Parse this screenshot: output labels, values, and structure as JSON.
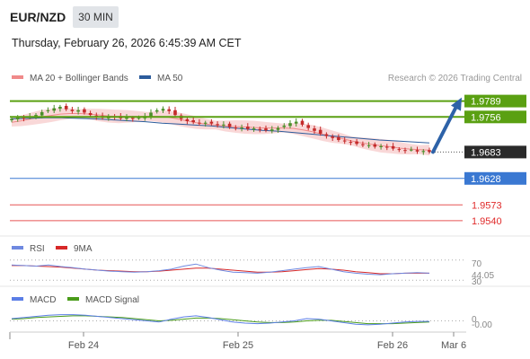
{
  "header": {
    "pair": "EUR/NZD",
    "timeframe": "30 MIN",
    "timestamp": "Thursday, February 26, 2026 6:45:39 AM CET"
  },
  "legend": {
    "ma20": "MA 20 + Bollinger Bands",
    "ma50": "MA 50",
    "copyright": "Research © 2026 Trading Central"
  },
  "colors": {
    "resistance": "#5aa012",
    "support": "#3a78d2",
    "red_line": "#e02a2a",
    "current_bg": "#2a2a2a",
    "arrow": "#2d62a8",
    "candle_up": "#4a8f2a",
    "candle_down": "#c42a2a",
    "bollinger": "#f6c8c8",
    "ma20": "#f08a8a",
    "ma50": "#2c5c9c",
    "rsi": "#6f89e0",
    "rsi_ma": "#d72828",
    "macd": "#5b7ee6",
    "macd_signal": "#4a9c1a"
  },
  "levels": [
    {
      "label": "1.9789",
      "style": "resistance-box"
    },
    {
      "label": "1.9756",
      "style": "resistance-box"
    },
    {
      "label": "1.9683",
      "style": "current-box"
    },
    {
      "label": "1.9628",
      "style": "support-box"
    },
    {
      "label": "1.9573",
      "style": "red-text"
    },
    {
      "label": "1.9540",
      "style": "red-text"
    }
  ],
  "rsi": {
    "legend": [
      "RSI",
      "9MA"
    ],
    "ticks": [
      "70",
      "44.05",
      "30"
    ]
  },
  "macd": {
    "legend": [
      "MACD",
      "MACD Signal"
    ],
    "ticks": [
      "0",
      "-0.00"
    ]
  },
  "xaxis": {
    "ticks": [
      "Feb 24",
      "Feb 25",
      "Feb 26",
      "Mar 6"
    ]
  },
  "chart_data": {
    "type": "candlestick",
    "symbol": "EUR/NZD",
    "interval": "30 MIN",
    "ylim": [
      1.951,
      1.982
    ],
    "series_close": [
      1.9752,
      1.9755,
      1.9753,
      1.9757,
      1.976,
      1.9766,
      1.977,
      1.9774,
      1.9777,
      1.9772,
      1.9768,
      1.977,
      1.9765,
      1.976,
      1.9756,
      1.9754,
      1.9758,
      1.9756,
      1.9753,
      1.9755,
      1.9752,
      1.9754,
      1.9758,
      1.9765,
      1.977,
      1.9773,
      1.9768,
      1.976,
      1.9752,
      1.9747,
      1.9745,
      1.9743,
      1.9744,
      1.9742,
      1.9739,
      1.974,
      1.9735,
      1.9733,
      1.9734,
      1.9731,
      1.9732,
      1.973,
      1.9728,
      1.973,
      1.9733,
      1.9738,
      1.9743,
      1.9746,
      1.974,
      1.9733,
      1.9727,
      1.9721,
      1.9716,
      1.9712,
      1.9708,
      1.9705,
      1.9703,
      1.97,
      1.9698,
      1.9697,
      1.9694,
      1.9695,
      1.9693,
      1.969,
      1.9688,
      1.9686,
      1.9688,
      1.9684,
      1.9685,
      1.9683
    ],
    "ma20": [
      1.9745,
      1.9748,
      1.9752,
      1.9756,
      1.9759,
      1.9762,
      1.9763,
      1.9763,
      1.9762,
      1.976,
      1.9758,
      1.9757,
      1.9757,
      1.9757,
      1.9757,
      1.9757,
      1.9756,
      1.9752,
      1.9748,
      1.9744,
      1.9741,
      1.9739,
      1.9737,
      1.9736,
      1.9735,
      1.9734,
      1.9733,
      1.9733,
      1.9733,
      1.9732,
      1.9729,
      1.9725,
      1.972,
      1.9715,
      1.9711,
      1.9706,
      1.9702,
      1.9699,
      1.9696,
      1.9694,
      1.9691,
      1.9689,
      1.9688,
      1.9687
    ],
    "ma50": [
      1.9752,
      1.9753,
      1.9754,
      1.9754,
      1.9753,
      1.9752,
      1.975,
      1.9748,
      1.9746,
      1.9743,
      1.9741,
      1.9739,
      1.9737,
      1.9734,
      1.9731,
      1.9728,
      1.9726,
      1.9723,
      1.972,
      1.9717,
      1.9714,
      1.9711,
      1.9708,
      1.9706,
      1.9704,
      1.9702
    ],
    "projection": {
      "from": 1.9683,
      "to": 1.9789
    },
    "x_tick_labels": [
      "Feb 24",
      "Feb 25",
      "Feb 26",
      "Mar 6"
    ],
    "rsi": {
      "current": 44.05,
      "levels": [
        70,
        30
      ],
      "ylim": [
        20,
        80
      ],
      "rsi": [
        60,
        59,
        58,
        60,
        57,
        55,
        52,
        50,
        48,
        47,
        46,
        47,
        49,
        52,
        58,
        62,
        55,
        50,
        46,
        45,
        44,
        46,
        49,
        52,
        55,
        57,
        52,
        47,
        44,
        42,
        41,
        43,
        44,
        45,
        44
      ],
      "ma": [
        59,
        59,
        58,
        57,
        56,
        54,
        52,
        50,
        49,
        48,
        47,
        47,
        48,
        50,
        52,
        54,
        54,
        52,
        50,
        48,
        46,
        46,
        47,
        49,
        51,
        53,
        52,
        50,
        47,
        45,
        43,
        43,
        44,
        44,
        44
      ]
    },
    "macd": {
      "current": -0.0,
      "ylim": [
        -0.002,
        0.002
      ],
      "macd": [
        0.0004,
        0.0006,
        0.0008,
        0.001,
        0.0011,
        0.0011,
        0.001,
        0.0008,
        0.0006,
        0.0004,
        0.0002,
        0.0,
        -0.0002,
        0.0003,
        0.0007,
        0.0009,
        0.0006,
        0.0002,
        -0.0002,
        -0.0004,
        -0.0005,
        -0.0004,
        -0.0002,
        0.0,
        0.0004,
        0.0003,
        0.0,
        -0.0003,
        -0.0006,
        -0.0007,
        -0.0006,
        -0.0004,
        -0.0002,
        -0.0001,
        -0.0001
      ],
      "signal": [
        0.0003,
        0.0004,
        0.0006,
        0.0007,
        0.0008,
        0.0009,
        0.0009,
        0.0008,
        0.0007,
        0.0006,
        0.0004,
        0.0002,
        0.0,
        0.0001,
        0.0003,
        0.0005,
        0.0005,
        0.0004,
        0.0002,
        0.0,
        -0.0002,
        -0.0003,
        -0.0003,
        -0.0002,
        0.0,
        0.0001,
        0.0001,
        -0.0001,
        -0.0003,
        -0.0005,
        -0.0005,
        -0.0005,
        -0.0004,
        -0.0003,
        -0.0002
      ]
    }
  }
}
